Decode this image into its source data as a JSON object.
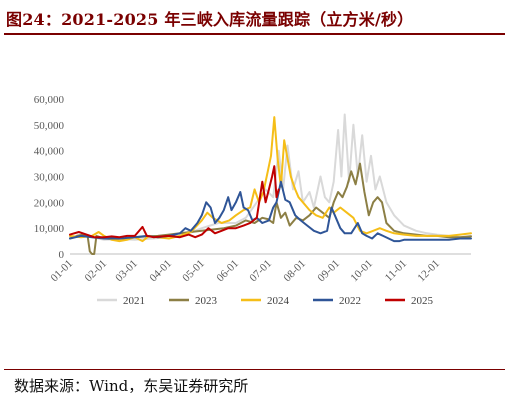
{
  "figure": {
    "title": "图24：2021-2025 年三峡入库流量跟踪（立方米/秒）",
    "source": "数据来源：Wind，东吴证券研究所"
  },
  "colors": {
    "title": "#7a0000",
    "s2021": "#d9d9d9",
    "s2023": "#8c7f45",
    "s2024": "#f5be18",
    "s2022": "#2f5597",
    "s2025": "#c00000"
  },
  "chart_data": {
    "type": "line",
    "title": "",
    "xlabel": "",
    "ylabel": "",
    "ylim": [
      0,
      60000
    ],
    "yticks": [
      "0",
      "10,000",
      "20,000",
      "30,000",
      "40,000",
      "50,000",
      "60,000"
    ],
    "ytick_values": [
      0,
      10000,
      20000,
      30000,
      40000,
      50000,
      60000
    ],
    "xlim": [
      0,
      365
    ],
    "xticks": [
      "01-01",
      "02-01",
      "03-01",
      "04-01",
      "05-01",
      "06-01",
      "07-01",
      "08-01",
      "09-01",
      "10-01",
      "11-01",
      "12-01"
    ],
    "xtick_values": [
      0,
      31,
      59,
      90,
      120,
      151,
      181,
      212,
      243,
      273,
      304,
      334
    ],
    "grid": false,
    "legend_position": "bottom",
    "series": [
      {
        "name": "2021",
        "color_key": "s2021",
        "points": [
          [
            0,
            6500
          ],
          [
            15,
            7000
          ],
          [
            31,
            5500
          ],
          [
            45,
            5800
          ],
          [
            59,
            5500
          ],
          [
            75,
            6000
          ],
          [
            90,
            6500
          ],
          [
            105,
            7500
          ],
          [
            120,
            10000
          ],
          [
            135,
            12000
          ],
          [
            151,
            12000
          ],
          [
            160,
            14000
          ],
          [
            170,
            20000
          ],
          [
            178,
            25000
          ],
          [
            185,
            22000
          ],
          [
            190,
            40000
          ],
          [
            194,
            25000
          ],
          [
            198,
            42000
          ],
          [
            203,
            25000
          ],
          [
            208,
            32000
          ],
          [
            212,
            20000
          ],
          [
            218,
            24000
          ],
          [
            222,
            18000
          ],
          [
            228,
            30000
          ],
          [
            232,
            22000
          ],
          [
            236,
            20000
          ],
          [
            240,
            28000
          ],
          [
            244,
            48000
          ],
          [
            247,
            30000
          ],
          [
            250,
            54000
          ],
          [
            254,
            28000
          ],
          [
            258,
            50000
          ],
          [
            262,
            30000
          ],
          [
            266,
            46000
          ],
          [
            270,
            28000
          ],
          [
            274,
            38000
          ],
          [
            278,
            25000
          ],
          [
            282,
            30000
          ],
          [
            288,
            20000
          ],
          [
            295,
            15000
          ],
          [
            304,
            11000
          ],
          [
            315,
            9000
          ],
          [
            325,
            8000
          ],
          [
            334,
            7500
          ],
          [
            345,
            7000
          ],
          [
            355,
            6500
          ],
          [
            365,
            7000
          ]
        ]
      },
      {
        "name": "2023",
        "color_key": "s2023",
        "points": [
          [
            0,
            6000
          ],
          [
            6,
            7000
          ],
          [
            12,
            7500
          ],
          [
            16,
            7000
          ],
          [
            18,
            1000
          ],
          [
            20,
            0
          ],
          [
            22,
            0
          ],
          [
            24,
            7000
          ],
          [
            31,
            6000
          ],
          [
            40,
            5800
          ],
          [
            50,
            6000
          ],
          [
            59,
            6500
          ],
          [
            70,
            6800
          ],
          [
            80,
            7000
          ],
          [
            90,
            7500
          ],
          [
            100,
            8000
          ],
          [
            110,
            8500
          ],
          [
            120,
            9000
          ],
          [
            130,
            9500
          ],
          [
            140,
            10000
          ],
          [
            151,
            11000
          ],
          [
            160,
            13000
          ],
          [
            168,
            12000
          ],
          [
            175,
            14000
          ],
          [
            180,
            13500
          ],
          [
            185,
            12000
          ],
          [
            188,
            20000
          ],
          [
            192,
            14000
          ],
          [
            196,
            16000
          ],
          [
            200,
            11000
          ],
          [
            206,
            14000
          ],
          [
            212,
            13000
          ],
          [
            218,
            15000
          ],
          [
            224,
            18000
          ],
          [
            230,
            16000
          ],
          [
            236,
            14000
          ],
          [
            240,
            20000
          ],
          [
            244,
            24000
          ],
          [
            248,
            22000
          ],
          [
            252,
            26000
          ],
          [
            256,
            32000
          ],
          [
            260,
            27000
          ],
          [
            264,
            35000
          ],
          [
            268,
            24000
          ],
          [
            272,
            15000
          ],
          [
            276,
            20000
          ],
          [
            280,
            22000
          ],
          [
            284,
            20000
          ],
          [
            288,
            12000
          ],
          [
            295,
            9000
          ],
          [
            304,
            8000
          ],
          [
            315,
            7500
          ],
          [
            325,
            7000
          ],
          [
            334,
            7000
          ],
          [
            345,
            6500
          ],
          [
            355,
            6500
          ],
          [
            365,
            6800
          ]
        ]
      },
      {
        "name": "2024",
        "color_key": "s2024",
        "points": [
          [
            0,
            7000
          ],
          [
            10,
            6500
          ],
          [
            20,
            7000
          ],
          [
            26,
            8500
          ],
          [
            31,
            7000
          ],
          [
            38,
            5500
          ],
          [
            45,
            5000
          ],
          [
            52,
            5500
          ],
          [
            59,
            6500
          ],
          [
            66,
            5000
          ],
          [
            72,
            7000
          ],
          [
            80,
            6500
          ],
          [
            90,
            6000
          ],
          [
            100,
            7000
          ],
          [
            110,
            8500
          ],
          [
            120,
            13000
          ],
          [
            125,
            16000
          ],
          [
            130,
            14000
          ],
          [
            138,
            12000
          ],
          [
            145,
            13000
          ],
          [
            151,
            15000
          ],
          [
            158,
            17000
          ],
          [
            164,
            18000
          ],
          [
            168,
            25000
          ],
          [
            172,
            20000
          ],
          [
            176,
            24000
          ],
          [
            180,
            32000
          ],
          [
            183,
            38000
          ],
          [
            186,
            53000
          ],
          [
            189,
            37000
          ],
          [
            192,
            26000
          ],
          [
            195,
            44000
          ],
          [
            198,
            37000
          ],
          [
            201,
            30000
          ],
          [
            205,
            25000
          ],
          [
            208,
            22000
          ],
          [
            212,
            20000
          ],
          [
            218,
            17000
          ],
          [
            224,
            15000
          ],
          [
            230,
            14000
          ],
          [
            236,
            18000
          ],
          [
            240,
            16000
          ],
          [
            246,
            18000
          ],
          [
            252,
            16000
          ],
          [
            258,
            14000
          ],
          [
            264,
            9000
          ],
          [
            270,
            8000
          ],
          [
            276,
            9000
          ],
          [
            282,
            10000
          ],
          [
            288,
            9000
          ],
          [
            295,
            8000
          ],
          [
            304,
            7500
          ],
          [
            315,
            7000
          ],
          [
            325,
            7000
          ],
          [
            334,
            7000
          ],
          [
            345,
            7000
          ],
          [
            355,
            7500
          ],
          [
            365,
            8000
          ]
        ]
      },
      {
        "name": "2022",
        "color_key": "s2022",
        "points": [
          [
            0,
            6000
          ],
          [
            10,
            7000
          ],
          [
            20,
            6500
          ],
          [
            31,
            6000
          ],
          [
            40,
            6000
          ],
          [
            50,
            6200
          ],
          [
            59,
            6500
          ],
          [
            70,
            7000
          ],
          [
            80,
            6500
          ],
          [
            90,
            7000
          ],
          [
            100,
            8000
          ],
          [
            105,
            10000
          ],
          [
            110,
            9000
          ],
          [
            116,
            12000
          ],
          [
            120,
            15000
          ],
          [
            124,
            20000
          ],
          [
            128,
            18000
          ],
          [
            132,
            12000
          ],
          [
            136,
            14000
          ],
          [
            140,
            17000
          ],
          [
            144,
            22000
          ],
          [
            147,
            17000
          ],
          [
            151,
            20000
          ],
          [
            155,
            24000
          ],
          [
            158,
            18000
          ],
          [
            162,
            17000
          ],
          [
            166,
            13000
          ],
          [
            170,
            14000
          ],
          [
            175,
            12000
          ],
          [
            181,
            13000
          ],
          [
            185,
            18000
          ],
          [
            188,
            20000
          ],
          [
            192,
            28000
          ],
          [
            196,
            21000
          ],
          [
            200,
            20000
          ],
          [
            205,
            15000
          ],
          [
            210,
            13000
          ],
          [
            216,
            11000
          ],
          [
            222,
            9000
          ],
          [
            228,
            8000
          ],
          [
            234,
            9000
          ],
          [
            238,
            18000
          ],
          [
            242,
            14000
          ],
          [
            246,
            10000
          ],
          [
            250,
            8000
          ],
          [
            256,
            8000
          ],
          [
            262,
            12000
          ],
          [
            266,
            8000
          ],
          [
            270,
            7000
          ],
          [
            275,
            6000
          ],
          [
            280,
            8000
          ],
          [
            285,
            7000
          ],
          [
            290,
            6000
          ],
          [
            295,
            5000
          ],
          [
            300,
            5000
          ],
          [
            304,
            5500
          ],
          [
            315,
            5500
          ],
          [
            325,
            5500
          ],
          [
            334,
            5500
          ],
          [
            345,
            5500
          ],
          [
            355,
            6000
          ],
          [
            365,
            6000
          ]
        ]
      },
      {
        "name": "2025",
        "color_key": "s2025",
        "points": [
          [
            0,
            7500
          ],
          [
            8,
            8500
          ],
          [
            15,
            7500
          ],
          [
            22,
            6500
          ],
          [
            31,
            6500
          ],
          [
            38,
            6800
          ],
          [
            45,
            6500
          ],
          [
            52,
            7000
          ],
          [
            59,
            7000
          ],
          [
            66,
            10500
          ],
          [
            70,
            7000
          ],
          [
            76,
            6500
          ],
          [
            84,
            6800
          ],
          [
            90,
            7000
          ],
          [
            100,
            6500
          ],
          [
            108,
            7500
          ],
          [
            114,
            6500
          ],
          [
            120,
            7500
          ],
          [
            126,
            10000
          ],
          [
            132,
            8000
          ],
          [
            138,
            9000
          ],
          [
            144,
            10000
          ],
          [
            151,
            10000
          ],
          [
            158,
            11000
          ],
          [
            164,
            12000
          ],
          [
            170,
            14000
          ],
          [
            175,
            28000
          ],
          [
            178,
            20000
          ],
          [
            181,
            25000
          ],
          [
            184,
            30000
          ],
          [
            186,
            34000
          ],
          [
            188,
            22000
          ],
          [
            190,
            25000
          ]
        ]
      }
    ]
  }
}
